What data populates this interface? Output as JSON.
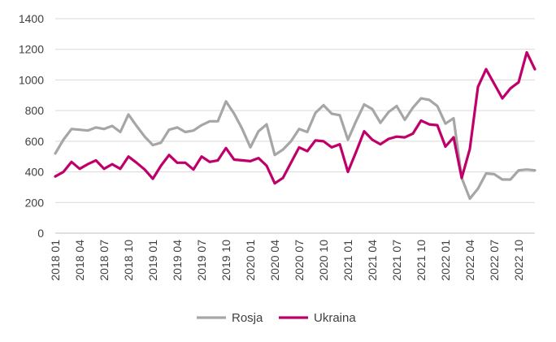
{
  "chart_data": {
    "type": "line",
    "title": "",
    "xlabel": "",
    "ylabel": "",
    "ylim": [
      0,
      1400
    ],
    "yticks": [
      0,
      200,
      400,
      600,
      800,
      1000,
      1200,
      1400
    ],
    "grid": "horizontal",
    "legend": "bottom",
    "x": [
      "2018 01",
      "2018 02",
      "2018 03",
      "2018 04",
      "2018 05",
      "2018 06",
      "2018 07",
      "2018 08",
      "2018 09",
      "2018 10",
      "2018 11",
      "2018 12",
      "2019 01",
      "2019 02",
      "2019 03",
      "2019 04",
      "2019 05",
      "2019 06",
      "2019 07",
      "2019 08",
      "2019 09",
      "2019 10",
      "2019 11",
      "2019 12",
      "2020 01",
      "2020 02",
      "2020 03",
      "2020 04",
      "2020 05",
      "2020 06",
      "2020 07",
      "2020 08",
      "2020 09",
      "2020 10",
      "2020 11",
      "2020 12",
      "2021 01",
      "2021 02",
      "2021 03",
      "2021 04",
      "2021 05",
      "2021 06",
      "2021 07",
      "2021 08",
      "2021 09",
      "2021 10",
      "2021 11",
      "2021 12",
      "2022 01",
      "2022 02",
      "2022 03",
      "2022 04",
      "2022 05",
      "2022 06",
      "2022 07",
      "2022 08",
      "2022 09",
      "2022 10",
      "2022 11",
      "2022 12"
    ],
    "xtick_labels": [
      "2018 01",
      "2018 04",
      "2018 07",
      "2018 10",
      "2019 01",
      "2019 04",
      "2019 07",
      "2019 10",
      "2020 01",
      "2020 04",
      "2020 07",
      "2020 10",
      "2021 01",
      "2021 04",
      "2021 07",
      "2021 10",
      "2022 01",
      "2022 04",
      "2022 07",
      "2022 10"
    ],
    "series": [
      {
        "name": "Rosja",
        "color": "#a6a6a6",
        "values": [
          520,
          610,
          680,
          675,
          670,
          690,
          680,
          700,
          660,
          775,
          700,
          630,
          575,
          590,
          675,
          690,
          660,
          670,
          705,
          730,
          730,
          860,
          780,
          680,
          560,
          665,
          710,
          510,
          545,
          600,
          680,
          660,
          785,
          835,
          780,
          770,
          610,
          730,
          840,
          810,
          720,
          790,
          830,
          740,
          820,
          880,
          870,
          830,
          715,
          750,
          360,
          225,
          290,
          390,
          385,
          350,
          350,
          410,
          415,
          410
        ]
      },
      {
        "name": "Ukraina",
        "color": "#c0006a",
        "values": [
          370,
          400,
          465,
          420,
          450,
          475,
          420,
          450,
          420,
          500,
          460,
          415,
          355,
          440,
          510,
          460,
          460,
          415,
          500,
          465,
          475,
          555,
          480,
          475,
          470,
          490,
          440,
          325,
          360,
          460,
          560,
          535,
          605,
          600,
          560,
          580,
          400,
          530,
          665,
          610,
          580,
          615,
          630,
          625,
          650,
          735,
          710,
          705,
          565,
          625,
          360,
          550,
          955,
          1070,
          975,
          880,
          945,
          985,
          1180,
          1070
        ]
      }
    ]
  }
}
